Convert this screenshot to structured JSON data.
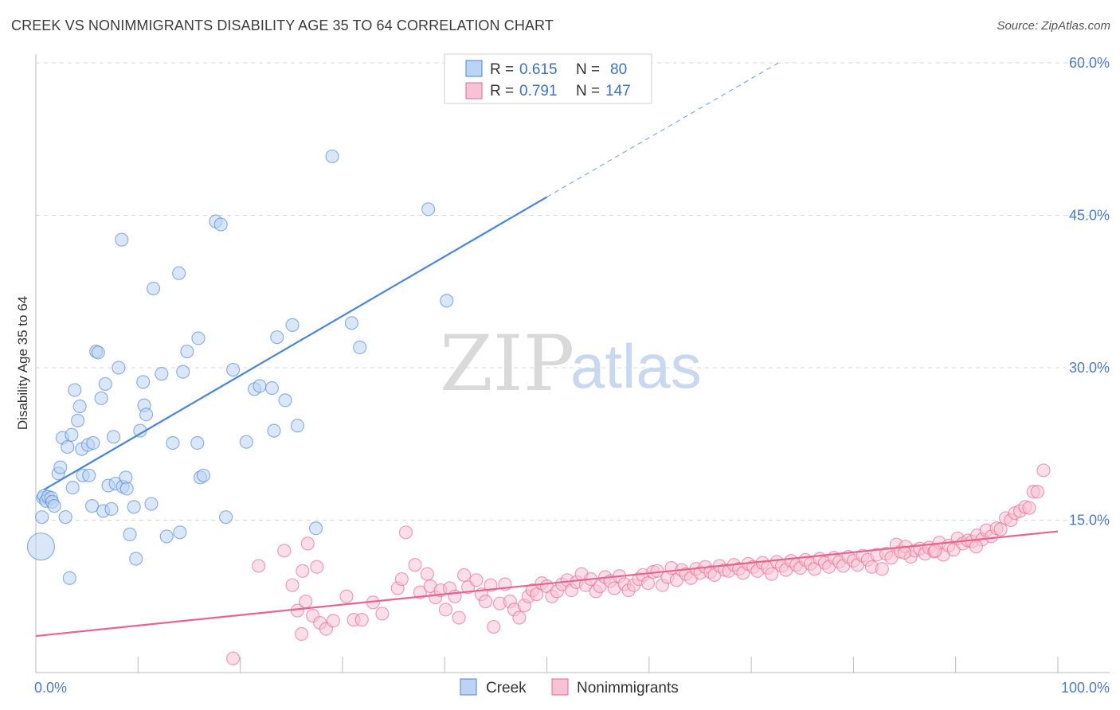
{
  "title": "CREEK VS NONIMMIGRANTS DISABILITY AGE 35 TO 64 CORRELATION CHART",
  "source": "Source: ZipAtlas.com",
  "watermark": {
    "zip": "ZIP",
    "atlas": "atlas"
  },
  "colors": {
    "creek": "#4a86d8",
    "creek_fill": "#bcd3f2",
    "nonimmigrants": "#e8648f",
    "nonimmigrants_fill": "#f7c3d4",
    "grid": "#d9d9d9",
    "tick": "#4a7cc7"
  },
  "legend": {
    "r_label": "R =",
    "n_label": "N =",
    "rows": [
      {
        "r": "0.615",
        "n": "80"
      },
      {
        "r": "0.791",
        "n": "147"
      }
    ]
  },
  "bottom_legend": [
    "Creek",
    "Nonimmigrants"
  ],
  "chart_data": {
    "type": "scatter",
    "title": "CREEK VS NONIMMIGRANTS DISABILITY AGE 35 TO 64 CORRELATION CHART",
    "xlabel": "",
    "ylabel": "Disability Age 35 to 64",
    "xlim": [
      0,
      100
    ],
    "ylim": [
      0,
      60
    ],
    "x_tick_labels": [
      "0.0%",
      "100.0%"
    ],
    "y_ticks": [
      15,
      30,
      45,
      60
    ],
    "y_tick_labels": [
      "15.0%",
      "30.0%",
      "45.0%",
      "60.0%"
    ],
    "grid": true,
    "legend_position": "top-center",
    "series": [
      {
        "name": "Creek",
        "r": 0.615,
        "n": 80,
        "trend": {
          "x0": 0.8,
          "y0": 18.0,
          "x1": 50.0,
          "y1": 46.8,
          "dashed_to_x": 73.0,
          "dashed_to_y": 60.2
        },
        "points": [
          [
            0.5,
            12.4
          ],
          [
            0.6,
            15.3
          ],
          [
            0.7,
            17.2
          ],
          [
            0.8,
            17.4
          ],
          [
            1.0,
            16.9
          ],
          [
            1.2,
            17.3
          ],
          [
            1.5,
            17.2
          ],
          [
            1.6,
            16.8
          ],
          [
            1.8,
            16.4
          ],
          [
            2.2,
            19.6
          ],
          [
            2.4,
            20.2
          ],
          [
            2.6,
            23.1
          ],
          [
            2.9,
            15.3
          ],
          [
            3.1,
            22.2
          ],
          [
            3.3,
            9.3
          ],
          [
            3.5,
            23.4
          ],
          [
            3.6,
            18.2
          ],
          [
            3.8,
            27.8
          ],
          [
            4.1,
            24.8
          ],
          [
            4.3,
            26.2
          ],
          [
            4.5,
            22.0
          ],
          [
            4.6,
            19.4
          ],
          [
            5.1,
            22.4
          ],
          [
            5.2,
            19.4
          ],
          [
            5.5,
            16.4
          ],
          [
            5.6,
            22.6
          ],
          [
            5.9,
            31.6
          ],
          [
            6.1,
            31.5
          ],
          [
            6.4,
            27.0
          ],
          [
            6.6,
            15.9
          ],
          [
            6.8,
            28.4
          ],
          [
            7.1,
            18.4
          ],
          [
            7.4,
            16.1
          ],
          [
            7.6,
            23.2
          ],
          [
            7.8,
            18.6
          ],
          [
            8.1,
            30.0
          ],
          [
            8.4,
            42.6
          ],
          [
            8.5,
            18.3
          ],
          [
            8.8,
            19.2
          ],
          [
            8.9,
            18.1
          ],
          [
            9.2,
            13.6
          ],
          [
            9.6,
            16.3
          ],
          [
            9.8,
            11.2
          ],
          [
            10.2,
            23.8
          ],
          [
            10.5,
            28.6
          ],
          [
            10.6,
            26.3
          ],
          [
            10.8,
            25.4
          ],
          [
            11.3,
            16.6
          ],
          [
            11.5,
            37.8
          ],
          [
            12.3,
            29.4
          ],
          [
            12.8,
            13.4
          ],
          [
            13.4,
            22.6
          ],
          [
            14.0,
            39.3
          ],
          [
            14.1,
            13.8
          ],
          [
            14.4,
            29.6
          ],
          [
            14.8,
            31.6
          ],
          [
            15.8,
            22.6
          ],
          [
            15.9,
            32.9
          ],
          [
            16.1,
            19.2
          ],
          [
            16.4,
            19.4
          ],
          [
            17.6,
            44.4
          ],
          [
            18.1,
            44.1
          ],
          [
            18.6,
            15.3
          ],
          [
            19.3,
            29.8
          ],
          [
            20.6,
            22.7
          ],
          [
            21.4,
            27.9
          ],
          [
            21.9,
            28.2
          ],
          [
            23.1,
            28.0
          ],
          [
            23.3,
            23.8
          ],
          [
            23.6,
            33.0
          ],
          [
            24.4,
            26.8
          ],
          [
            25.1,
            34.2
          ],
          [
            25.6,
            24.3
          ],
          [
            27.4,
            14.2
          ],
          [
            29.0,
            50.8
          ],
          [
            30.9,
            34.4
          ],
          [
            31.7,
            32.0
          ],
          [
            38.4,
            45.6
          ],
          [
            40.2,
            36.6
          ],
          [
            44.7,
            56.7
          ]
        ]
      },
      {
        "name": "Nonimmigrants",
        "r": 0.791,
        "n": 147,
        "trend": {
          "x0": 0.0,
          "y0": 3.6,
          "x1": 100.0,
          "y1": 13.9
        },
        "points": [
          [
            19.3,
            1.4
          ],
          [
            21.8,
            10.5
          ],
          [
            24.3,
            12.0
          ],
          [
            25.1,
            8.6
          ],
          [
            25.6,
            6.1
          ],
          [
            26.1,
            10.0
          ],
          [
            26.4,
            7.0
          ],
          [
            26.6,
            12.7
          ],
          [
            27.1,
            5.6
          ],
          [
            27.5,
            10.4
          ],
          [
            27.8,
            4.9
          ],
          [
            28.4,
            4.3
          ],
          [
            29.1,
            5.1
          ],
          [
            30.4,
            7.5
          ],
          [
            31.1,
            5.2
          ],
          [
            31.9,
            5.2
          ],
          [
            33.0,
            6.9
          ],
          [
            33.9,
            5.8
          ],
          [
            35.4,
            8.3
          ],
          [
            35.8,
            9.2
          ],
          [
            36.2,
            13.8
          ],
          [
            37.1,
            10.6
          ],
          [
            37.6,
            7.9
          ],
          [
            38.3,
            9.7
          ],
          [
            38.6,
            8.5
          ],
          [
            39.1,
            7.4
          ],
          [
            39.6,
            8.1
          ],
          [
            40.1,
            6.2
          ],
          [
            40.5,
            8.3
          ],
          [
            41.0,
            7.5
          ],
          [
            41.4,
            5.4
          ],
          [
            41.9,
            9.6
          ],
          [
            42.3,
            8.4
          ],
          [
            43.1,
            9.1
          ],
          [
            43.6,
            7.7
          ],
          [
            44.0,
            7.0
          ],
          [
            44.5,
            8.6
          ],
          [
            44.8,
            4.5
          ],
          [
            45.4,
            6.8
          ],
          [
            45.9,
            8.7
          ],
          [
            46.4,
            7.0
          ],
          [
            46.8,
            6.2
          ],
          [
            47.3,
            5.4
          ],
          [
            47.8,
            6.6
          ],
          [
            48.2,
            7.5
          ],
          [
            48.6,
            8.1
          ],
          [
            49.0,
            7.7
          ],
          [
            49.5,
            8.8
          ],
          [
            50.0,
            8.5
          ],
          [
            50.5,
            7.5
          ],
          [
            51.0,
            8.0
          ],
          [
            51.5,
            8.7
          ],
          [
            52.0,
            9.1
          ],
          [
            52.4,
            8.1
          ],
          [
            52.9,
            8.9
          ],
          [
            53.4,
            9.7
          ],
          [
            53.8,
            8.6
          ],
          [
            54.3,
            9.2
          ],
          [
            54.8,
            8.0
          ],
          [
            55.2,
            8.5
          ],
          [
            55.7,
            9.4
          ],
          [
            56.2,
            9.0
          ],
          [
            56.6,
            8.3
          ],
          [
            57.1,
            9.5
          ],
          [
            57.6,
            8.7
          ],
          [
            58.0,
            8.1
          ],
          [
            58.5,
            8.6
          ],
          [
            59.0,
            9.2
          ],
          [
            59.4,
            9.6
          ],
          [
            59.9,
            8.8
          ],
          [
            60.4,
            9.9
          ],
          [
            60.8,
            10.0
          ],
          [
            61.3,
            8.6
          ],
          [
            61.8,
            9.4
          ],
          [
            62.2,
            10.3
          ],
          [
            62.7,
            9.1
          ],
          [
            63.2,
            10.1
          ],
          [
            63.6,
            9.7
          ],
          [
            64.1,
            9.3
          ],
          [
            64.6,
            10.2
          ],
          [
            65.0,
            9.8
          ],
          [
            65.5,
            10.4
          ],
          [
            66.0,
            9.9
          ],
          [
            66.4,
            9.6
          ],
          [
            66.9,
            10.5
          ],
          [
            67.4,
            10.1
          ],
          [
            67.8,
            10.0
          ],
          [
            68.3,
            10.6
          ],
          [
            68.8,
            10.2
          ],
          [
            69.2,
            9.8
          ],
          [
            69.7,
            10.7
          ],
          [
            70.2,
            10.4
          ],
          [
            70.6,
            10.0
          ],
          [
            71.1,
            10.8
          ],
          [
            71.6,
            10.3
          ],
          [
            72.0,
            9.7
          ],
          [
            72.5,
            10.9
          ],
          [
            73.0,
            10.5
          ],
          [
            73.4,
            10.1
          ],
          [
            73.9,
            11.0
          ],
          [
            74.4,
            10.6
          ],
          [
            74.8,
            10.3
          ],
          [
            75.3,
            11.1
          ],
          [
            75.8,
            10.7
          ],
          [
            76.2,
            10.2
          ],
          [
            76.7,
            11.2
          ],
          [
            77.2,
            10.8
          ],
          [
            77.6,
            10.4
          ],
          [
            78.1,
            11.3
          ],
          [
            78.6,
            10.9
          ],
          [
            79.0,
            10.5
          ],
          [
            79.5,
            11.4
          ],
          [
            80.0,
            11.0
          ],
          [
            80.4,
            10.6
          ],
          [
            80.9,
            11.5
          ],
          [
            81.4,
            11.1
          ],
          [
            81.8,
            10.4
          ],
          [
            82.3,
            11.6
          ],
          [
            82.8,
            10.2
          ],
          [
            83.2,
            11.7
          ],
          [
            83.7,
            11.3
          ],
          [
            84.2,
            12.6
          ],
          [
            84.6,
            11.9
          ],
          [
            85.1,
            12.4
          ],
          [
            85.6,
            11.4
          ],
          [
            86.0,
            12.0
          ],
          [
            86.5,
            12.2
          ],
          [
            87.0,
            11.7
          ],
          [
            87.4,
            12.3
          ],
          [
            87.9,
            11.9
          ],
          [
            88.4,
            12.8
          ],
          [
            88.8,
            11.6
          ],
          [
            89.3,
            12.5
          ],
          [
            89.8,
            12.1
          ],
          [
            90.2,
            13.2
          ],
          [
            90.7,
            12.7
          ],
          [
            91.2,
            13.0
          ],
          [
            91.6,
            12.9
          ],
          [
            92.1,
            13.5
          ],
          [
            92.6,
            13.1
          ],
          [
            93.0,
            14.0
          ],
          [
            93.5,
            13.4
          ],
          [
            94.0,
            14.2
          ],
          [
            94.4,
            14.1
          ],
          [
            94.9,
            15.2
          ],
          [
            95.4,
            15.0
          ],
          [
            95.8,
            15.7
          ],
          [
            96.3,
            15.9
          ],
          [
            96.8,
            16.3
          ],
          [
            97.2,
            16.2
          ],
          [
            97.6,
            17.8
          ],
          [
            98.0,
            17.8
          ],
          [
            98.6,
            19.9
          ],
          [
            92.0,
            12.4
          ],
          [
            88.0,
            12.0
          ],
          [
            85.0,
            11.8
          ],
          [
            26.0,
            3.8
          ]
        ]
      }
    ]
  }
}
